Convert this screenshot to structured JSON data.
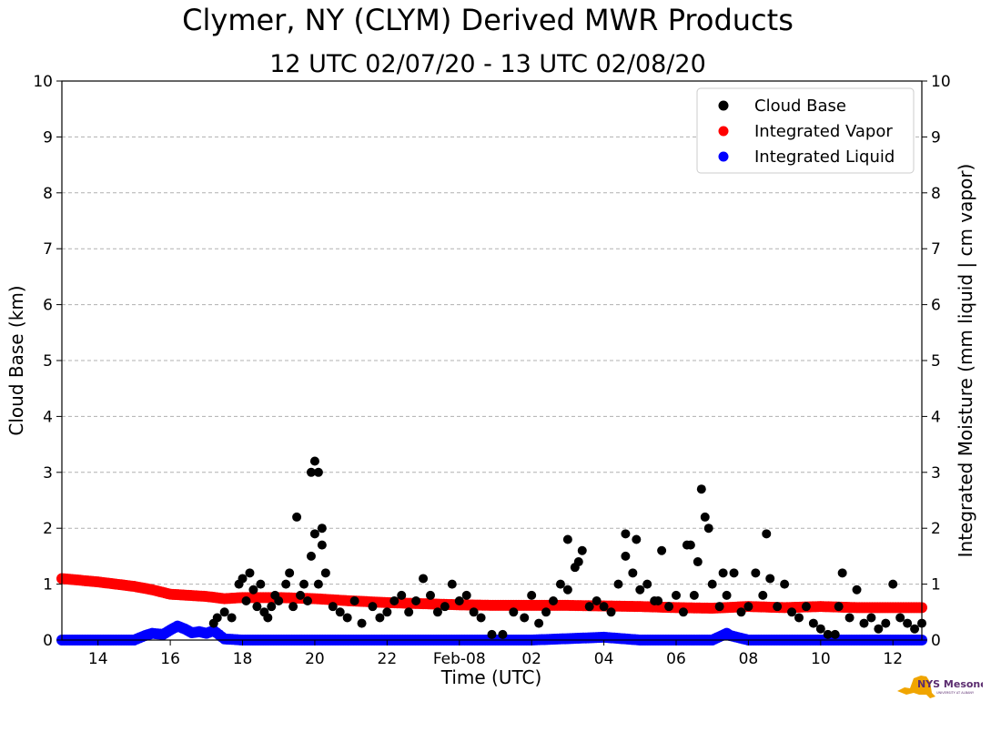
{
  "chart_data": {
    "type": "scatter",
    "title": "Clymer, NY (CLYM) Derived MWR Products",
    "subtitle": "12 UTC 02/07/20 - 13 UTC 02/08/20",
    "xlabel": "Time (UTC)",
    "ylabel": "Cloud Base (km)",
    "y2label": "Integrated Moisture (mm liquid | cm vapor)",
    "xlim": [
      13.0,
      36.8
    ],
    "ylim": [
      0,
      10
    ],
    "y2lim": [
      0,
      10
    ],
    "x_ticks": [
      {
        "value": 14,
        "label": "14"
      },
      {
        "value": 16,
        "label": "16"
      },
      {
        "value": 18,
        "label": "18"
      },
      {
        "value": 20,
        "label": "20"
      },
      {
        "value": 22,
        "label": "22"
      },
      {
        "value": 24,
        "label": "Feb-08"
      },
      {
        "value": 26,
        "label": "02"
      },
      {
        "value": 28,
        "label": "04"
      },
      {
        "value": 30,
        "label": "06"
      },
      {
        "value": 32,
        "label": "08"
      },
      {
        "value": 34,
        "label": "10"
      },
      {
        "value": 36,
        "label": "12"
      }
    ],
    "y_ticks": [
      0,
      1,
      2,
      3,
      4,
      5,
      6,
      7,
      8,
      9,
      10
    ],
    "grid": true,
    "legend_position": "top-right",
    "series": [
      {
        "name": "Cloud Base",
        "color": "#000000",
        "x": [
          17.2,
          17.3,
          17.5,
          17.7,
          17.9,
          18.0,
          18.1,
          18.2,
          18.3,
          18.4,
          18.5,
          18.6,
          18.7,
          18.8,
          18.9,
          19.0,
          19.2,
          19.3,
          19.4,
          19.6,
          19.7,
          19.8,
          19.9,
          20.0,
          20.1,
          20.2,
          20.3,
          20.5,
          20.7,
          20.9,
          21.1,
          21.3,
          21.6,
          21.8,
          22.0,
          22.2,
          22.4,
          22.6,
          22.8,
          23.0,
          23.2,
          23.4,
          23.6,
          23.8,
          24.0,
          24.2,
          24.4,
          24.6,
          24.9,
          25.2,
          25.5,
          25.8,
          26.0,
          26.2,
          26.4,
          26.6,
          26.8,
          27.0,
          27.2,
          27.4,
          27.6,
          27.8,
          28.0,
          28.2,
          28.4,
          28.6,
          28.8,
          29.0,
          29.2,
          29.4,
          29.6,
          29.8,
          30.0,
          30.2,
          30.4,
          30.6,
          30.8,
          31.0,
          31.2,
          31.4,
          31.6,
          31.8,
          32.0,
          32.2,
          32.4,
          32.6,
          32.8,
          33.0,
          33.2,
          33.4,
          33.6,
          33.8,
          34.0,
          34.2,
          34.4,
          34.6,
          34.8,
          35.0,
          35.2,
          35.4,
          35.6,
          35.8,
          36.0,
          36.2,
          36.4,
          36.6,
          36.8,
          19.5,
          20.1,
          20.0,
          19.9,
          20.2,
          27.0,
          27.3,
          28.6,
          28.9,
          30.3,
          30.7,
          30.9,
          31.3,
          32.5,
          29.5,
          30.5,
          34.5
        ],
        "y": [
          0.3,
          0.4,
          0.5,
          0.4,
          1.0,
          1.1,
          0.7,
          1.2,
          0.9,
          0.6,
          1.0,
          0.5,
          0.4,
          0.6,
          0.8,
          0.7,
          1.0,
          1.2,
          0.6,
          0.8,
          1.0,
          0.7,
          1.5,
          1.9,
          1.0,
          2.0,
          1.2,
          0.6,
          0.5,
          0.4,
          0.7,
          0.3,
          0.6,
          0.4,
          0.5,
          0.7,
          0.8,
          0.5,
          0.7,
          1.1,
          0.8,
          0.5,
          0.6,
          1.0,
          0.7,
          0.8,
          0.5,
          0.4,
          0.1,
          0.1,
          0.5,
          0.4,
          0.8,
          0.3,
          0.5,
          0.7,
          1.0,
          0.9,
          1.3,
          1.6,
          0.6,
          0.7,
          0.6,
          0.5,
          1.0,
          1.5,
          1.2,
          0.9,
          1.0,
          0.7,
          1.6,
          0.6,
          0.8,
          0.5,
          1.7,
          1.4,
          2.2,
          1.0,
          0.6,
          0.8,
          1.2,
          0.5,
          0.6,
          1.2,
          0.8,
          1.1,
          0.6,
          1.0,
          0.5,
          0.4,
          0.6,
          0.3,
          0.2,
          0.1,
          0.1,
          1.2,
          0.4,
          0.9,
          0.3,
          0.4,
          0.2,
          0.3,
          1.0,
          0.4,
          0.3,
          0.2,
          0.3,
          2.2,
          3.0,
          3.2,
          3.0,
          1.7,
          1.8,
          1.4,
          1.9,
          1.8,
          1.7,
          2.7,
          2.0,
          1.2,
          1.9,
          0.7,
          0.8,
          0.6
        ]
      },
      {
        "name": "Integrated Vapor",
        "color": "#ff0000",
        "x": [
          13.0,
          14.0,
          15.0,
          15.5,
          16.0,
          17.0,
          17.5,
          18.0,
          19.0,
          20.0,
          21.0,
          22.0,
          23.0,
          24.0,
          25.0,
          26.0,
          27.0,
          28.0,
          29.0,
          30.0,
          31.0,
          32.0,
          33.0,
          34.0,
          35.0,
          36.0,
          36.8
        ],
        "y": [
          1.1,
          1.04,
          0.96,
          0.9,
          0.82,
          0.78,
          0.74,
          0.76,
          0.76,
          0.74,
          0.7,
          0.67,
          0.65,
          0.63,
          0.62,
          0.62,
          0.62,
          0.61,
          0.6,
          0.58,
          0.57,
          0.6,
          0.58,
          0.6,
          0.58,
          0.58,
          0.58
        ]
      },
      {
        "name": "Integrated Liquid",
        "color": "#0000ff",
        "x": [
          13.0,
          14.0,
          15.0,
          15.3,
          15.5,
          15.8,
          16.0,
          16.2,
          16.4,
          16.6,
          16.8,
          17.0,
          17.2,
          17.5,
          18.0,
          20.0,
          22.0,
          24.0,
          26.0,
          28.0,
          29.0,
          30.0,
          31.0,
          31.4,
          31.5,
          32.0,
          33.0,
          34.0,
          35.0,
          36.0,
          36.8
        ],
        "y": [
          0.0,
          0.0,
          0.0,
          0.08,
          0.12,
          0.1,
          0.18,
          0.25,
          0.2,
          0.13,
          0.15,
          0.12,
          0.17,
          0.02,
          0.0,
          0.0,
          0.0,
          0.0,
          0.0,
          0.05,
          0.0,
          0.0,
          0.0,
          0.12,
          0.08,
          0.0,
          0.0,
          0.0,
          0.0,
          0.0,
          0.0
        ]
      }
    ]
  },
  "logo": {
    "text": "NYS Mesonet",
    "subtext": "UNIVERSITY AT ALBANY",
    "color": "#5b2c6f",
    "map_color": "#f0a500"
  }
}
